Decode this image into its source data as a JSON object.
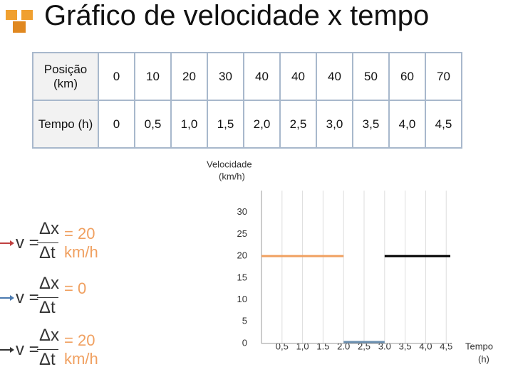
{
  "title": "Gráfico de velocidade x tempo",
  "table": {
    "rows": [
      [
        "Posição (km)",
        "0",
        "10",
        "20",
        "30",
        "40",
        "40",
        "40",
        "50",
        "60",
        "70"
      ],
      [
        "Tempo (h)",
        "0",
        "0,5",
        "1,0",
        "1,5",
        "2,0",
        "2,5",
        "3,0",
        "3,5",
        "4,0",
        "4,5"
      ]
    ]
  },
  "formulas": [
    {
      "lhs": "v =",
      "numerator": "Δx",
      "denominator": "Δt",
      "result": "= 20 km/h"
    },
    {
      "lhs": "v =",
      "numerator": "Δx",
      "denominator": "Δt",
      "result": "= 0"
    },
    {
      "lhs": "v =",
      "numerator": "Δx",
      "denominator": "Δt",
      "result": "= 20 km/h"
    }
  ],
  "chart_data": {
    "type": "step-segments",
    "y_label": [
      "Velocidade",
      "(km/h)"
    ],
    "x_label": [
      "Tempo",
      "(h)"
    ],
    "xlim": [
      0,
      4.6
    ],
    "ylim": [
      0,
      35
    ],
    "xticks": [
      {
        "value": 0.5,
        "label": "0,5"
      },
      {
        "value": 1,
        "label": "1,0"
      },
      {
        "value": 1.5,
        "label": "1.5"
      },
      {
        "value": 2,
        "label": "2.0"
      },
      {
        "value": 2.5,
        "label": "2,5"
      },
      {
        "value": 3,
        "label": "3.0"
      },
      {
        "value": 3.5,
        "label": "3,5"
      },
      {
        "value": 4,
        "label": "4,0"
      },
      {
        "value": 4.5,
        "label": "4,5"
      }
    ],
    "yticks": [
      0,
      5,
      10,
      15,
      20,
      25,
      30
    ],
    "grid": true,
    "segments": [
      {
        "color": "#f0a060",
        "x": [
          0,
          2
        ],
        "values": [
          20,
          20
        ]
      },
      {
        "color": "#6a8fb0",
        "x": [
          2,
          3
        ],
        "values": [
          0,
          0
        ]
      },
      {
        "color": "#000000",
        "x": [
          3,
          4.6
        ],
        "values": [
          20,
          20
        ]
      }
    ]
  }
}
